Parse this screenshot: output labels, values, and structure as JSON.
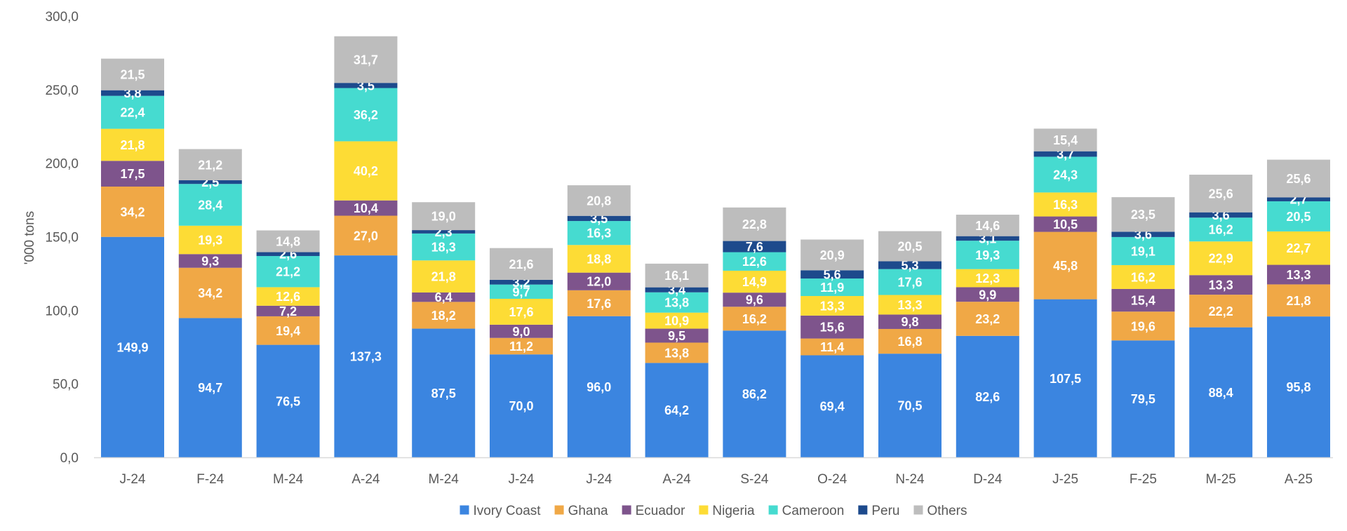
{
  "chart_data": {
    "type": "bar",
    "stacked": true,
    "title": "",
    "xlabel": "",
    "ylabel": "'000 tons",
    "ylim": [
      0,
      300
    ],
    "yticks": [
      "0,0",
      "50,0",
      "100,0",
      "150,0",
      "200,0",
      "250,0",
      "300,0"
    ],
    "grid": false,
    "legend_position": "bottom",
    "categories": [
      "J-24",
      "F-24",
      "M-24",
      "A-24",
      "M-24",
      "J-24",
      "J-24",
      "A-24",
      "S-24",
      "O-24",
      "N-24",
      "D-24",
      "J-25",
      "F-25",
      "M-25",
      "A-25"
    ],
    "series": [
      {
        "name": "Ivory Coast",
        "color": "#3B85E0",
        "values": [
          149.9,
          94.7,
          76.5,
          137.3,
          87.5,
          70.0,
          96.0,
          64.2,
          86.2,
          69.4,
          70.5,
          82.6,
          107.5,
          79.5,
          88.4,
          95.8
        ],
        "labels": [
          "149,9",
          "94,7",
          "76,5",
          "137,3",
          "87,5",
          "70,0",
          "96,0",
          "64,2",
          "86,2",
          "69,4",
          "70,5",
          "82,6",
          "107,5",
          "79,5",
          "88,4",
          "95,8"
        ]
      },
      {
        "name": "Ghana",
        "color": "#F0A846",
        "values": [
          34.2,
          34.2,
          19.4,
          27.0,
          18.2,
          11.2,
          17.6,
          13.8,
          16.2,
          11.4,
          16.8,
          23.2,
          45.8,
          19.6,
          22.2,
          21.8
        ],
        "labels": [
          "34,2",
          "34,2",
          "19,4",
          "27,0",
          "18,2",
          "11,2",
          "17,6",
          "13,8",
          "16,2",
          "11,4",
          "16,8",
          "23,2",
          "45,8",
          "19,6",
          "22,2",
          "21,8"
        ]
      },
      {
        "name": "Ecuador",
        "color": "#7E548C",
        "values": [
          17.5,
          9.3,
          7.2,
          10.4,
          6.4,
          9.0,
          12.0,
          9.5,
          9.6,
          15.6,
          9.8,
          9.9,
          10.5,
          15.4,
          13.3,
          13.3
        ],
        "labels": [
          "17,5",
          "9,3",
          "7,2",
          "10,4",
          "6,4",
          "9,0",
          "12,0",
          "9,5",
          "9,6",
          "15,6",
          "9,8",
          "9,9",
          "10,5",
          "15,4",
          "13,3",
          "13,3"
        ]
      },
      {
        "name": "Nigeria",
        "color": "#FDDC35",
        "values": [
          21.8,
          19.3,
          12.6,
          40.2,
          21.8,
          17.6,
          18.8,
          10.9,
          14.9,
          13.3,
          13.3,
          12.3,
          16.3,
          16.2,
          22.9,
          22.7
        ],
        "labels": [
          "21,8",
          "19,3",
          "12,6",
          "40,2",
          "21,8",
          "17,6",
          "18,8",
          "10,9",
          "14,9",
          "13,3",
          "13,3",
          "12,3",
          "16,3",
          "16,2",
          "22,9",
          "22,7"
        ]
      },
      {
        "name": "Cameroon",
        "color": "#46DBD0",
        "values": [
          22.4,
          28.4,
          21.2,
          36.2,
          18.3,
          9.7,
          16.3,
          13.8,
          12.6,
          11.9,
          17.6,
          19.3,
          24.3,
          19.1,
          16.2,
          20.5
        ],
        "labels": [
          "22,4",
          "28,4",
          "21,2",
          "36,2",
          "18,3",
          "9,7",
          "16,3",
          "13,8",
          "12,6",
          "11,9",
          "17,6",
          "19,3",
          "24,3",
          "19,1",
          "16,2",
          "20,5"
        ]
      },
      {
        "name": "Peru",
        "color": "#1D4A8C",
        "values": [
          3.8,
          2.5,
          2.6,
          3.5,
          2.3,
          3.2,
          3.5,
          3.4,
          7.6,
          5.6,
          5.3,
          3.1,
          3.7,
          3.6,
          3.6,
          2.7
        ],
        "labels": [
          "3,8",
          "2,5",
          "2,6",
          "3,5",
          "2,3",
          "3,2",
          "3,5",
          "3,4",
          "7,6",
          "5,6",
          "5,3",
          "3,1",
          "3,7",
          "3,6",
          "3,6",
          "2,7"
        ]
      },
      {
        "name": "Others",
        "color": "#BDBDBD",
        "values": [
          21.5,
          21.2,
          14.8,
          31.7,
          19.0,
          21.6,
          20.8,
          16.1,
          22.8,
          20.9,
          20.5,
          14.6,
          15.4,
          23.5,
          25.6,
          25.6
        ],
        "labels": [
          "21,5",
          "21,2",
          "14,8",
          "31,7",
          "19,0",
          "21,6",
          "20,8",
          "16,1",
          "22,8",
          "20,9",
          "20,5",
          "14,6",
          "15,4",
          "23,5",
          "25,6",
          "25,6"
        ]
      }
    ],
    "colors": {
      "axis": "#D9D9D9",
      "tick_text": "#595959",
      "data_label": "#FFFFFF"
    }
  }
}
